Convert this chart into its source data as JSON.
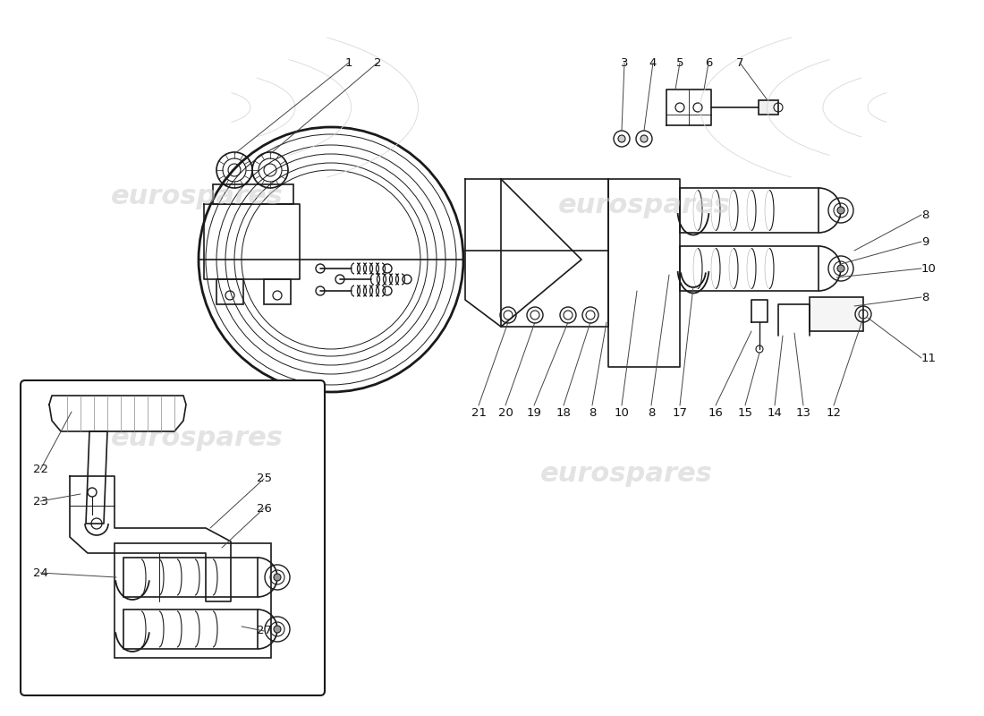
{
  "bg_color": "#ffffff",
  "line_color": "#1a1a1a",
  "watermark_color": "#cccccc",
  "watermark_text": "eurospares"
}
